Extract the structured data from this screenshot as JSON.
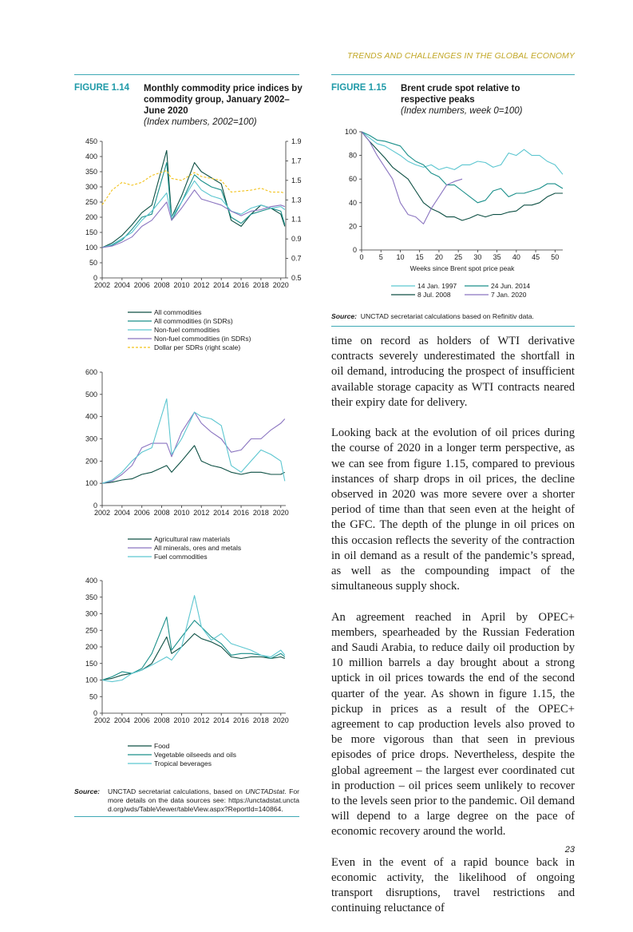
{
  "header": {
    "running_title": "TRENDS AND CHALLENGES IN THE GLOBAL ECONOMY"
  },
  "figure_1_14": {
    "label": "FIGURE 1.14",
    "title": "Monthly commodity price indices by commodity group, January 2002–June 2020",
    "subtitle": "(Index numbers, 2002=100)",
    "source": {
      "label": "Source:",
      "text_before": "UNCTAD secretariat calculations, based on ",
      "italic": "UNCTADstat",
      "text_after": ". For more details on the data sources see: https://unctadstat.unctad.org/wds/TableViewer/tableView.aspx?ReportId=140864."
    }
  },
  "figure_1_15": {
    "label": "FIGURE 1.15",
    "title": "Brent crude spot relative to respective peaks",
    "subtitle": "(Index numbers, week 0=100)",
    "source": {
      "label": "Source:",
      "text": "UNCTAD secretariat calculations based on Refinitiv data."
    }
  },
  "chart_data": [
    {
      "type": "line",
      "x": [
        2002,
        2003,
        2004,
        2005,
        2006,
        2007,
        2008.5,
        2009,
        2010,
        2011.3,
        2012,
        2013,
        2014,
        2015,
        2016,
        2017,
        2018,
        2019,
        2020,
        2020.4
      ],
      "xlim": [
        2002,
        2020.5
      ],
      "xticks": [
        2002,
        2004,
        2006,
        2008,
        2010,
        2012,
        2014,
        2016,
        2018,
        2020
      ],
      "ylim": [
        0,
        450
      ],
      "yticks": [
        0,
        50,
        100,
        150,
        200,
        250,
        300,
        350,
        400,
        450
      ],
      "y2lim": [
        0.5,
        1.9
      ],
      "y2ticks": [
        0.5,
        0.7,
        0.9,
        1.1,
        1.3,
        1.5,
        1.7,
        1.9
      ],
      "series": [
        {
          "name": "All commodities",
          "color": "#0d4f43",
          "values": [
            100,
            115,
            140,
            175,
            215,
            240,
            420,
            200,
            270,
            380,
            350,
            330,
            310,
            190,
            170,
            210,
            240,
            230,
            210,
            170
          ]
        },
        {
          "name": "All commodities (in SDRs)",
          "color": "#1a8f8a",
          "values": [
            100,
            108,
            125,
            160,
            200,
            210,
            380,
            190,
            250,
            340,
            320,
            300,
            290,
            200,
            180,
            210,
            220,
            230,
            220,
            175
          ]
        },
        {
          "name": "Non-fuel commodities",
          "color": "#5cc6d0",
          "values": [
            100,
            110,
            130,
            150,
            190,
            220,
            280,
            200,
            250,
            320,
            290,
            270,
            260,
            220,
            210,
            230,
            240,
            230,
            235,
            225
          ]
        },
        {
          "name": "Non-fuel commodities (in SDRs)",
          "color": "#8a74c0",
          "values": [
            100,
            105,
            118,
            135,
            170,
            190,
            250,
            190,
            230,
            290,
            260,
            250,
            240,
            220,
            205,
            220,
            225,
            235,
            240,
            235
          ]
        },
        {
          "name": "Dollar per SDRs (right scale)",
          "color": "#f2c21b",
          "line_style": "dashed",
          "axis": "y2",
          "values": [
            1.25,
            1.4,
            1.48,
            1.45,
            1.48,
            1.55,
            1.6,
            1.52,
            1.5,
            1.58,
            1.54,
            1.52,
            1.5,
            1.38,
            1.39,
            1.4,
            1.42,
            1.38,
            1.38,
            1.37
          ]
        }
      ]
    },
    {
      "type": "line",
      "x": [
        2002,
        2003,
        2004,
        2005,
        2006,
        2007,
        2008.5,
        2009,
        2010,
        2011.3,
        2012,
        2013,
        2014,
        2015,
        2016,
        2017,
        2018,
        2019,
        2020,
        2020.4
      ],
      "xlim": [
        2002,
        2020.5
      ],
      "xticks": [
        2002,
        2004,
        2006,
        2008,
        2010,
        2012,
        2014,
        2016,
        2018,
        2020
      ],
      "ylim": [
        0,
        600
      ],
      "yticks": [
        0,
        100,
        200,
        300,
        400,
        500,
        600
      ],
      "series": [
        {
          "name": "Agricultural raw materials",
          "color": "#0d4f43",
          "values": [
            100,
            105,
            115,
            120,
            140,
            150,
            180,
            150,
            200,
            270,
            200,
            180,
            170,
            150,
            140,
            150,
            150,
            140,
            140,
            150
          ]
        },
        {
          "name": "All minerals, ores and metals",
          "color": "#8a74c0",
          "values": [
            100,
            110,
            140,
            180,
            260,
            280,
            280,
            220,
            330,
            420,
            370,
            330,
            300,
            240,
            250,
            300,
            300,
            340,
            370,
            390
          ]
        },
        {
          "name": "Fuel commodities",
          "color": "#5cc6d0",
          "values": [
            100,
            115,
            150,
            200,
            240,
            260,
            480,
            230,
            300,
            420,
            400,
            390,
            360,
            180,
            150,
            200,
            250,
            230,
            200,
            110
          ]
        }
      ]
    },
    {
      "type": "line",
      "x": [
        2002,
        2003,
        2004,
        2005,
        2006,
        2007,
        2008.5,
        2009,
        2010,
        2011.3,
        2012,
        2013,
        2014,
        2015,
        2016,
        2017,
        2018,
        2019,
        2020,
        2020.4
      ],
      "xlim": [
        2002,
        2020.5
      ],
      "xticks": [
        2002,
        2004,
        2006,
        2008,
        2010,
        2012,
        2014,
        2016,
        2018,
        2020
      ],
      "ylim": [
        0,
        400
      ],
      "yticks": [
        0,
        50,
        100,
        150,
        200,
        250,
        300,
        350,
        400
      ],
      "series": [
        {
          "name": "Food",
          "color": "#0d4f43",
          "values": [
            100,
            105,
            115,
            120,
            130,
            150,
            230,
            180,
            200,
            240,
            225,
            215,
            200,
            170,
            165,
            170,
            170,
            165,
            170,
            165
          ]
        },
        {
          "name": "Vegetable oilseeds and oils",
          "color": "#1a8f8a",
          "values": [
            100,
            110,
            125,
            120,
            135,
            180,
            290,
            190,
            230,
            280,
            260,
            230,
            210,
            175,
            180,
            180,
            175,
            165,
            180,
            170
          ]
        },
        {
          "name": "Tropical beverages",
          "color": "#5cc6d0",
          "values": [
            100,
            95,
            100,
            120,
            130,
            145,
            170,
            160,
            200,
            355,
            260,
            220,
            240,
            210,
            200,
            190,
            175,
            170,
            190,
            175
          ]
        }
      ]
    },
    {
      "type": "line",
      "x_label": "Weeks since Brent spot price peak",
      "x": [
        0,
        2,
        4,
        6,
        8,
        10,
        12,
        14,
        16,
        18,
        20,
        22,
        24,
        26,
        28,
        30,
        32,
        34,
        36,
        38,
        40,
        42,
        44,
        46,
        48,
        50,
        52
      ],
      "xlim": [
        0,
        52
      ],
      "xticks": [
        0,
        5,
        10,
        15,
        20,
        25,
        30,
        35,
        40,
        45,
        50
      ],
      "ylim": [
        0,
        100
      ],
      "yticks": [
        0,
        20,
        40,
        60,
        80,
        100
      ],
      "series": [
        {
          "name": "14 Jan. 1997",
          "color": "#5cc6d0",
          "values": [
            100,
            95,
            90,
            88,
            84,
            80,
            75,
            72,
            70,
            72,
            68,
            70,
            68,
            72,
            72,
            75,
            74,
            70,
            72,
            82,
            80,
            85,
            80,
            80,
            75,
            72,
            64
          ]
        },
        {
          "name": "24 Jun. 2014",
          "color": "#1a8f8a",
          "values": [
            100,
            97,
            93,
            92,
            90,
            88,
            80,
            75,
            72,
            65,
            62,
            55,
            55,
            50,
            45,
            40,
            42,
            50,
            52,
            45,
            48,
            48,
            50,
            52,
            56,
            56,
            52
          ]
        },
        {
          "name": "8 Jul. 2008",
          "color": "#0d4f43",
          "values": [
            100,
            92,
            85,
            78,
            70,
            65,
            60,
            50,
            40,
            35,
            32,
            28,
            28,
            25,
            27,
            30,
            28,
            30,
            30,
            32,
            33,
            38,
            38,
            40,
            45,
            48,
            48
          ]
        },
        {
          "name": "7 Jan. 2020",
          "color": "#8a74c0",
          "values": [
            100,
            92,
            80,
            70,
            60,
            40,
            30,
            28,
            22,
            35,
            45,
            55,
            58,
            60,
            null,
            null,
            null,
            null,
            null,
            null,
            null,
            null,
            null,
            null,
            null,
            null,
            null
          ]
        }
      ]
    }
  ],
  "body": {
    "paragraphs": [
      "time on record as holders of WTI derivative contracts severely underestimated the shortfall in oil demand, introducing the prospect of insufficient available storage capacity as WTI contracts neared their expiry date for delivery.",
      "Looking back at the evolution of oil prices during the course of 2020 in a longer term perspective, as we can see from figure 1.15, compared to previous instances of sharp drops in oil prices, the decline observed in 2020 was more severe over a shorter period of time than that seen even at the height of the GFC. The depth of the plunge in oil prices on this occasion reflects the severity of the contraction in oil demand as a result of the pandemic’s spread, as well as the compounding impact of the simultaneous supply shock.",
      "An agreement reached in April by OPEC+ members, spearheaded by the Russian Federation and Saudi Arabia, to reduce daily oil production by 10 million barrels a day brought about a strong uptick in oil prices towards the end of the second quarter of the year. As shown in figure 1.15, the pickup in prices as a result of the OPEC+ agreement to cap production levels also proved to be more vigorous than that seen in previous episodes of price drops. Nevertheless, despite the global agreement – the largest ever coordinated cut in production – oil prices seem unlikely to recover to the levels seen prior to the pandemic. Oil demand will depend to a large degree on the pace of economic recovery around the world.",
      "Even in the event of a rapid bounce back in economic activity, the likelihood of ongoing transport disruptions, travel restrictions and continuing reluctance of"
    ]
  },
  "page_number": "23"
}
